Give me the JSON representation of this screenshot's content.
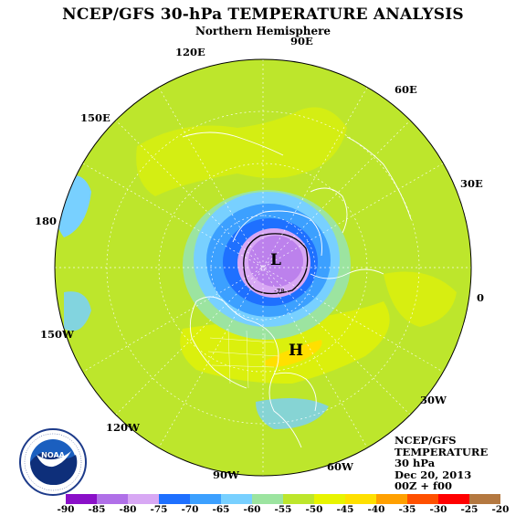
{
  "header": {
    "title": "NCEP/GFS 30-hPa TEMPERATURE ANALYSIS",
    "subtitle": "Northern Hemisphere"
  },
  "map": {
    "longitude_labels": [
      "90E",
      "120E",
      "60E",
      "150E",
      "30E",
      "180",
      "0",
      "150W",
      "30W",
      "120W",
      "60W",
      "90W"
    ],
    "markers": {
      "low": "L",
      "high": "H"
    },
    "contour_value": "-78"
  },
  "info_box": {
    "line1": "NCEP/GFS",
    "line2": "TEMPERATURE",
    "line3": "30 hPa",
    "line4": "Dec 20, 2013",
    "line5": "00Z + f00"
  },
  "colorbar": {
    "labels": [
      "-90",
      "-85",
      "-80",
      "-75",
      "-70",
      "-65",
      "-60",
      "-55",
      "-50",
      "-45",
      "-40",
      "-35",
      "-30",
      "-25",
      "-20"
    ],
    "colors": [
      "#8a10c8",
      "#b070e8",
      "#d8a8f4",
      "#1e70ff",
      "#3ca0ff",
      "#78d0ff",
      "#9ce4a0",
      "#bde62c",
      "#e8f400",
      "#ffe000",
      "#ffa000",
      "#ff5000",
      "#ff0000",
      "#b47840"
    ]
  },
  "logo": {
    "text": "NOAA",
    "ring_text": "NATIONAL OCEANIC AND ATMOSPHERIC ADMINISTRATION · U.S. DEPARTMENT OF COMMERCE"
  }
}
